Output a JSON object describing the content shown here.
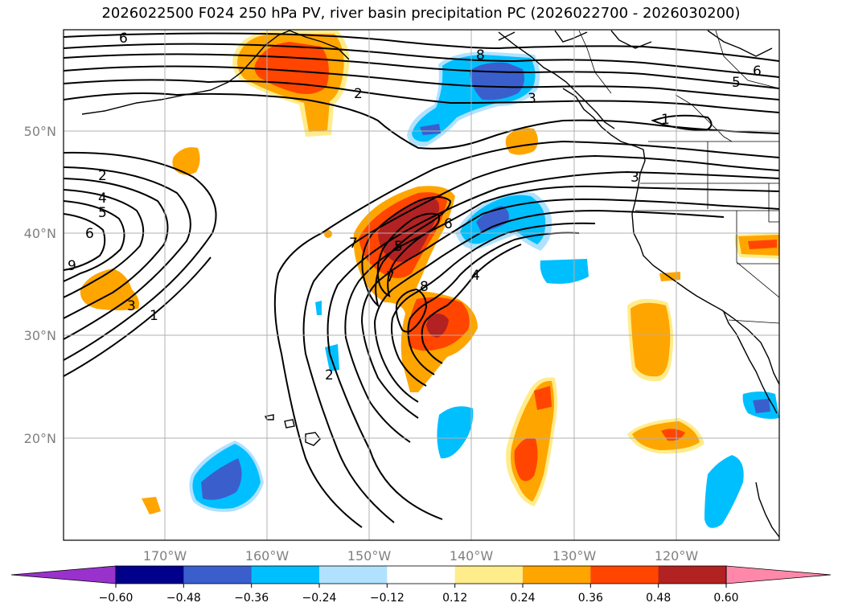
{
  "title": "2026022500 F024 250 hPa PV, river basin precipitation PC (2026022700 - 2026030200)",
  "lat_labels": [
    "50°N",
    "40°N",
    "30°N",
    "20°N"
  ],
  "lon_labels": [
    "170°W",
    "160°W",
    "150°W",
    "140°W",
    "130°W",
    "120°W"
  ],
  "colorbar": {
    "colors": [
      "#9932CC",
      "#00008B",
      "#3A5FCD",
      "#00BFFF",
      "#B0E2FF",
      "#FFFFFF",
      "#FFEC8B",
      "#FFA500",
      "#FF4500",
      "#B22222",
      "#FF88AA"
    ],
    "ticks": [
      "−0.60",
      "−0.48",
      "−0.36",
      "−0.24",
      "−0.12",
      "0.12",
      "0.24",
      "0.36",
      "0.48",
      "0.60"
    ]
  },
  "contour_labels": [
    "6",
    "8",
    "2",
    "3",
    "5",
    "6",
    "1",
    "3",
    "2",
    "4",
    "5",
    "6",
    "9",
    "3",
    "1",
    "7",
    "5",
    "6",
    "8",
    "4",
    "7",
    "2"
  ],
  "colors": {
    "grid": "#b0b0b0",
    "contour": "#000000",
    "coast": "#000000"
  }
}
